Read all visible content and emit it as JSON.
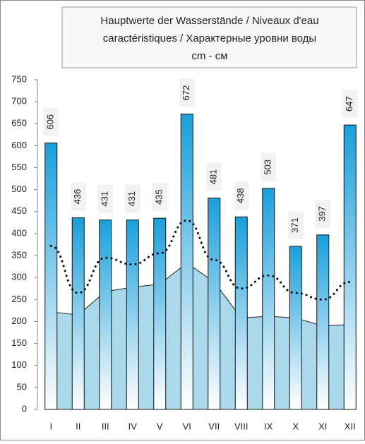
{
  "chart_data": {
    "type": "bar",
    "title": [
      "Hauptwerte der Wasserstände / Niveaux d'eau",
      "caractéristiques / Характерные уровни воды",
      "cm - см"
    ],
    "categories": [
      "I",
      "II",
      "III",
      "IV",
      "V",
      "VI",
      "VII",
      "VIII",
      "IX",
      "X",
      "XI",
      "XII"
    ],
    "series": [
      {
        "type": "area",
        "color": "#a9d9ea",
        "values": [
          222,
          215,
          268,
          278,
          285,
          333,
          290,
          208,
          212,
          208,
          190,
          193
        ]
      },
      {
        "type": "bar",
        "color": "#1a9fdb",
        "values": [
          606,
          436,
          431,
          431,
          435,
          672,
          481,
          438,
          503,
          371,
          397,
          647
        ]
      },
      {
        "type": "line",
        "color": "#000000",
        "values": [
          372,
          265,
          345,
          330,
          355,
          430,
          340,
          275,
          305,
          265,
          250,
          290
        ]
      }
    ],
    "ylim": [
      0,
      750
    ],
    "yticks": [
      0,
      50,
      100,
      150,
      200,
      250,
      300,
      350,
      400,
      450,
      500,
      550,
      600,
      650,
      700,
      750
    ]
  }
}
